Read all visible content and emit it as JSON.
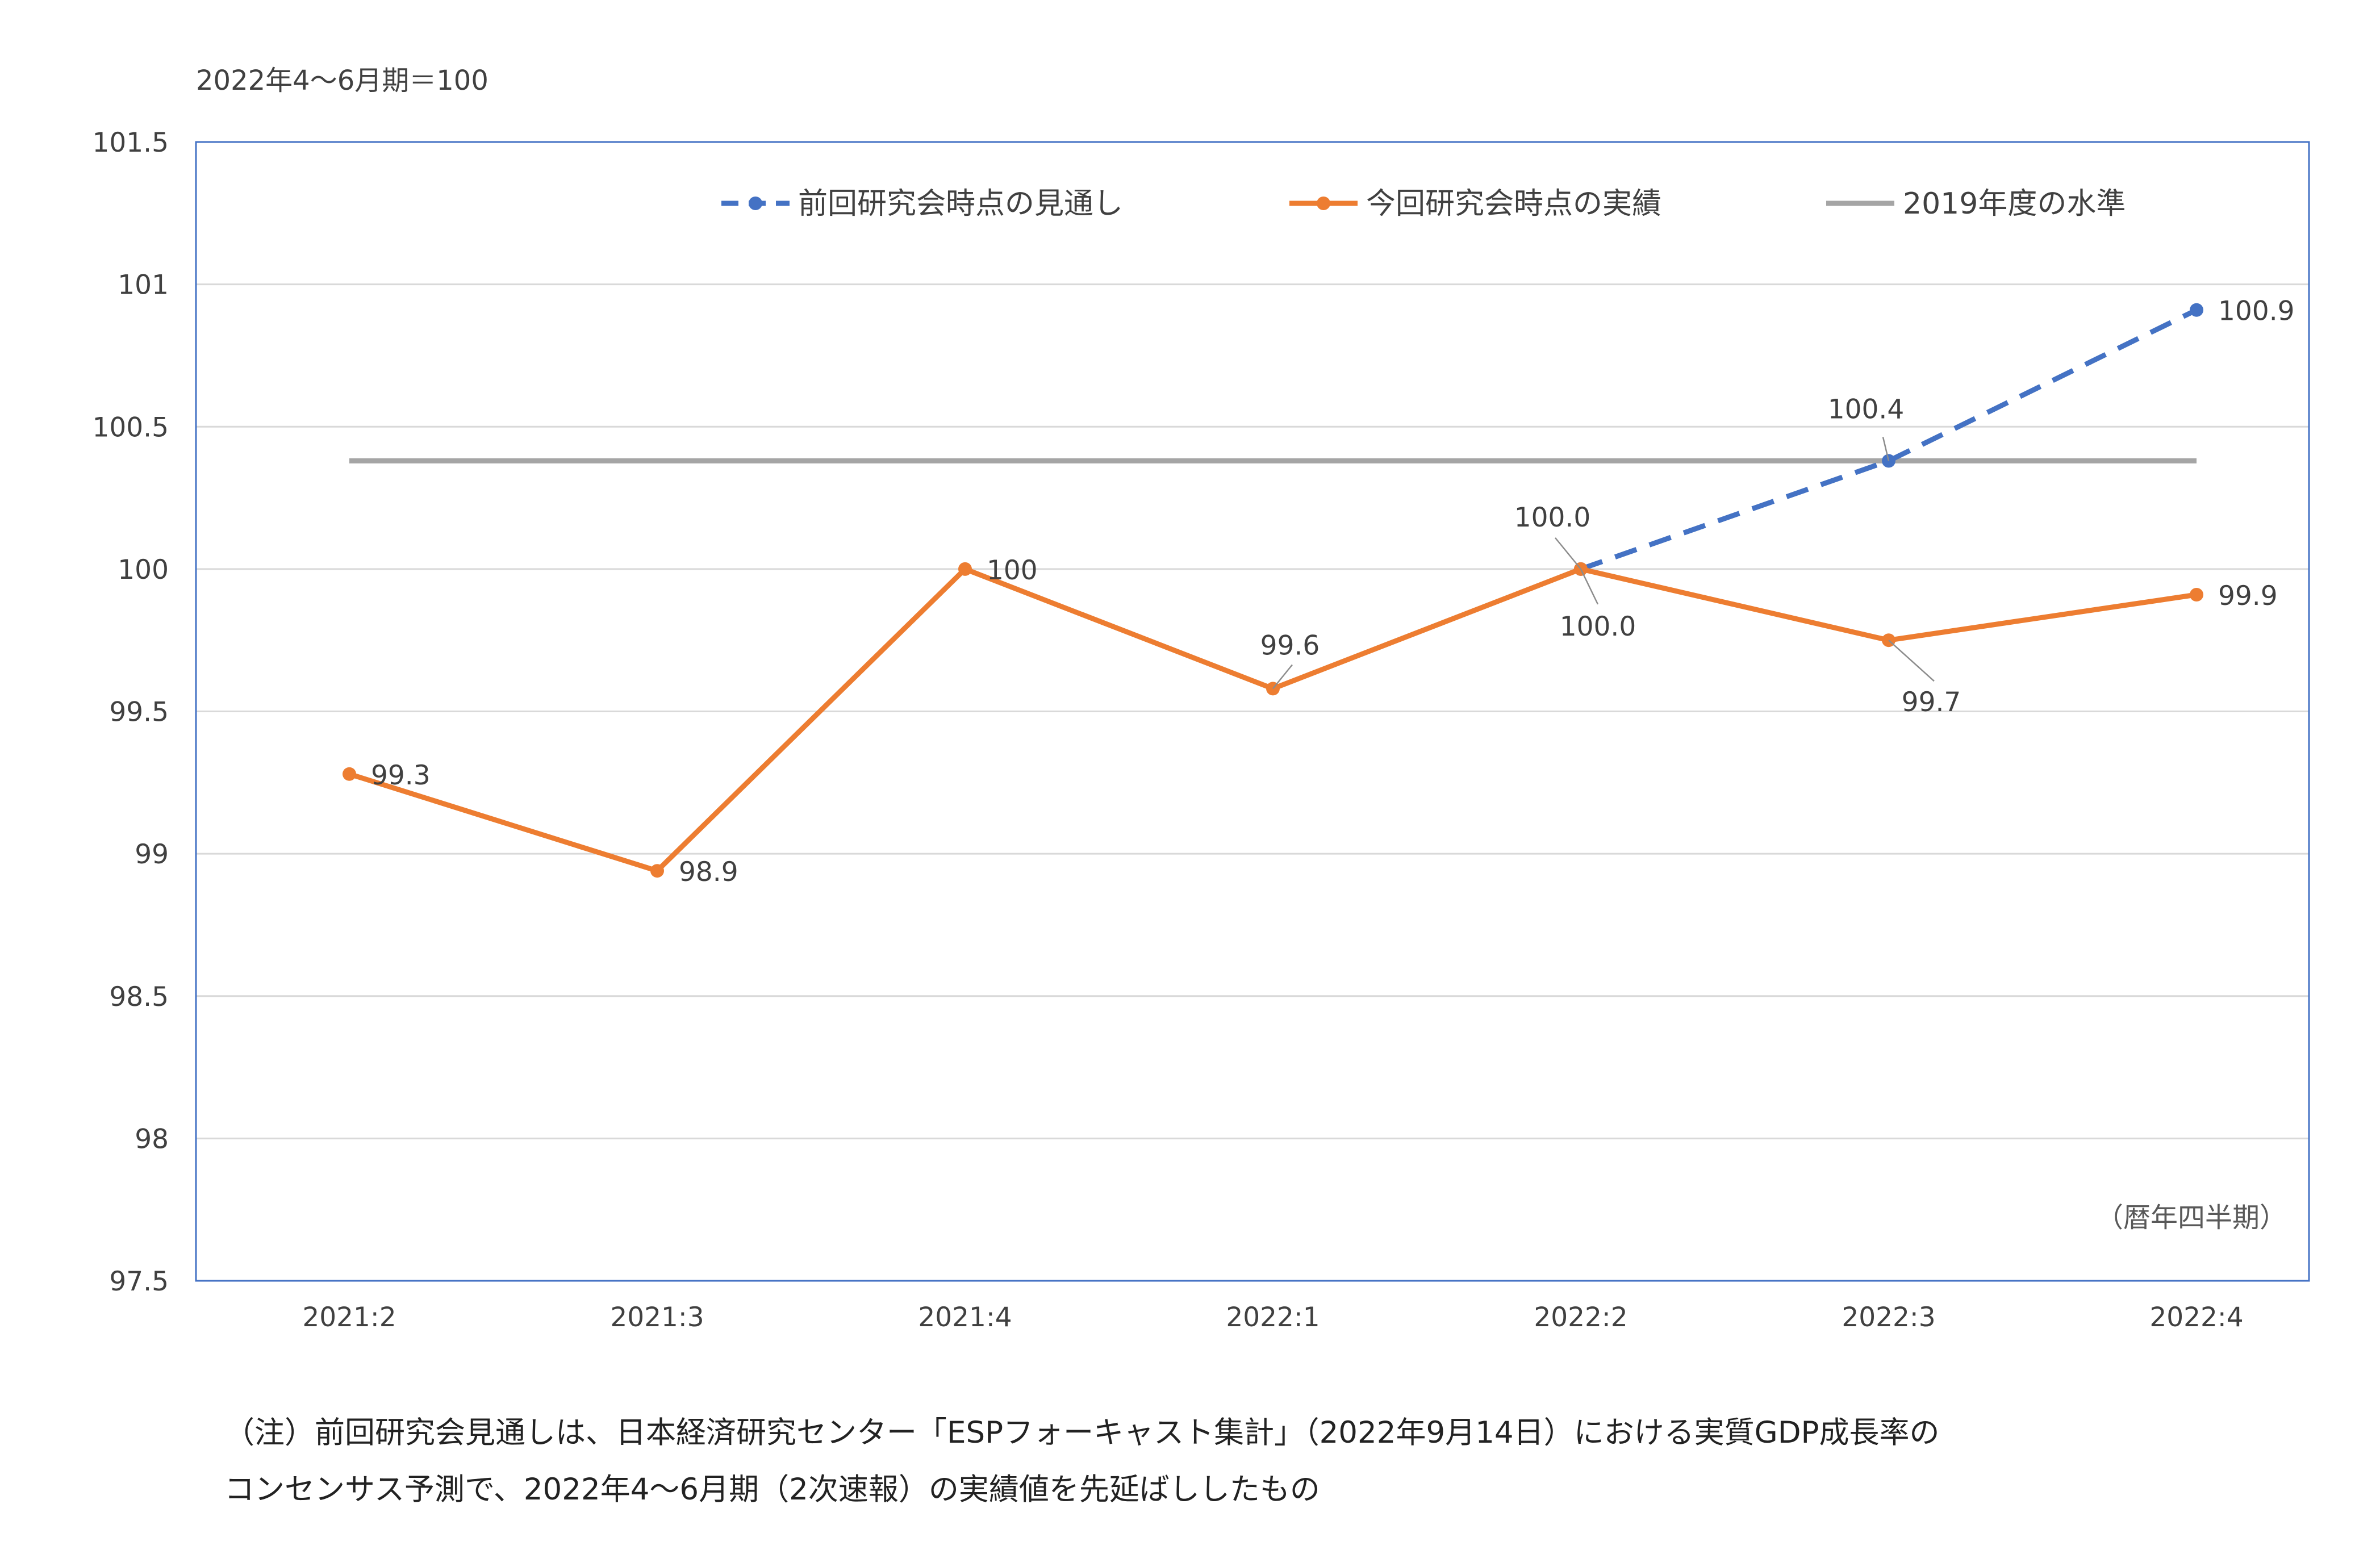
{
  "chart_data": {
    "type": "line",
    "unit_label": "2022年4～6月期＝100",
    "period_label": "（暦年四半期）",
    "categories": [
      "2021:2",
      "2021:3",
      "2021:4",
      "2022:1",
      "2022:2",
      "2022:3",
      "2022:4"
    ],
    "ylim": [
      97.5,
      101.5
    ],
    "yticks": [
      "97.5",
      "98",
      "98.5",
      "99",
      "99.5",
      "100",
      "100.5",
      "101",
      "101.5"
    ],
    "grid": true,
    "legend_position": "top",
    "series": [
      {
        "name": "前回研究会時点の見通し",
        "color": "#4472C4",
        "style": "dashed",
        "values": [
          null,
          null,
          null,
          null,
          100.0,
          100.38,
          100.91
        ],
        "labels": [
          null,
          null,
          null,
          null,
          "100.0",
          "100.4",
          "100.9"
        ]
      },
      {
        "name": "今回研究会時点の実績",
        "color": "#ED7D31",
        "style": "solid",
        "values": [
          99.28,
          98.94,
          100.0,
          99.58,
          100.0,
          99.75,
          99.91
        ],
        "labels": [
          "99.3",
          "98.9",
          "100",
          "99.6",
          "100.0",
          "99.7",
          "99.9"
        ]
      },
      {
        "name": "2019年度の水準",
        "color": "#A5A5A5",
        "style": "solid",
        "values": [
          100.38,
          100.38,
          100.38,
          100.38,
          100.38,
          100.38,
          100.38
        ],
        "labels": []
      }
    ]
  },
  "footnote": {
    "line1": "（注）前回研究会見通しは、日本経済研究センター「ESPフォーキャスト集計」（2022年9月14日）における実質GDP成長率の",
    "line2": "コンセンサス予測で、2022年4～6月期（2次速報）の実績値を先延ばししたもの"
  }
}
